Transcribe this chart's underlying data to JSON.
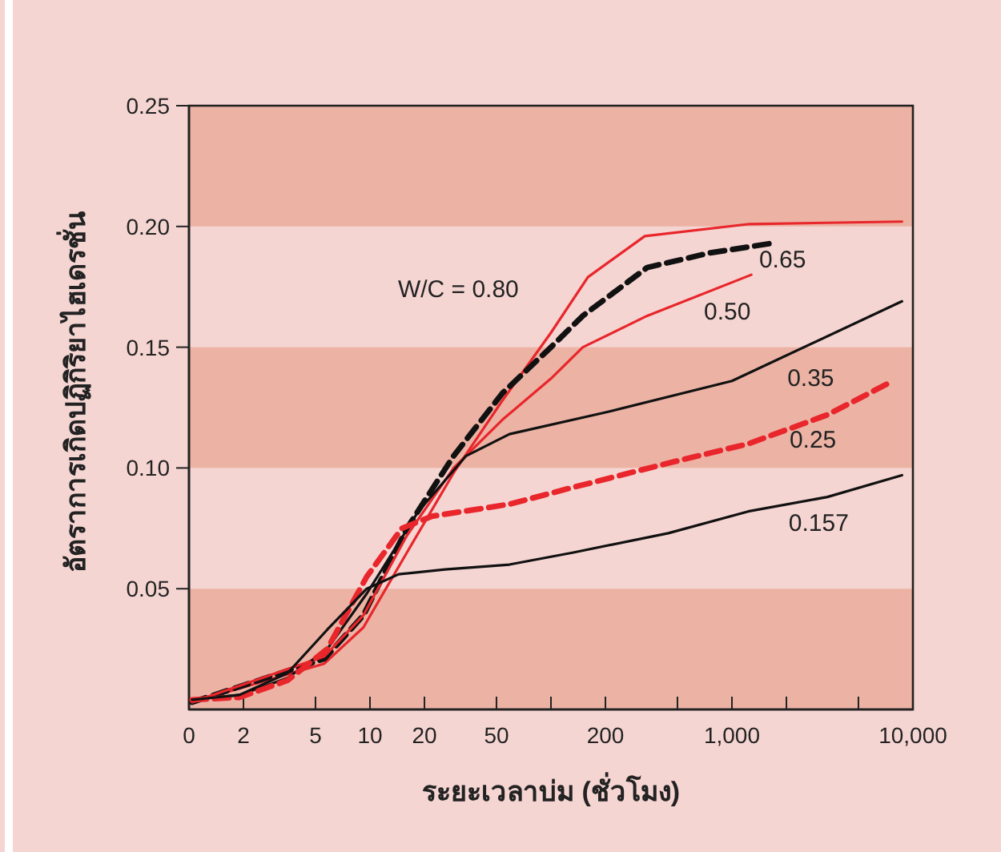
{
  "chart_data": {
    "type": "line",
    "xlabel": "ระยะเวลาบ่ม (ชั่วโมง)",
    "ylabel": "อัตราการเกิดปฏิกิริยาไฮเดรชั่น",
    "log": "x",
    "xlim": [
      0,
      10000
    ],
    "ylim": [
      0,
      0.25
    ],
    "xticks": [
      0,
      2,
      5,
      10,
      20,
      50,
      {
        "value": 100,
        "label": null
      },
      200,
      {
        "value": 500,
        "label": null
      },
      {
        "value": 1000,
        "label": "1,000"
      },
      {
        "value": 2000,
        "label": null
      },
      {
        "value": 5000,
        "label": null
      },
      {
        "value": 10000,
        "label": "10,000"
      }
    ],
    "yticks": [
      0.05,
      {
        "value": 0.1,
        "label": "0.10"
      },
      0.15,
      {
        "value": 0.2,
        "label": "0.20"
      },
      0.25
    ],
    "bands": [
      {
        "axis": "y",
        "from": 0,
        "to": 0.05,
        "color": "#ecb3a5"
      },
      {
        "axis": "y",
        "from": 0.1,
        "to": 0.15,
        "color": "#ecb3a5"
      },
      {
        "axis": "y",
        "from": 0.2,
        "to": 0.25,
        "color": "#ecb3a5"
      }
    ],
    "grid": false,
    "legend": false,
    "marker": "none",
    "series": [
      {
        "name": "W/C = 0.80",
        "color": "#e8262b",
        "line_style": "solid",
        "x": [
          1.04,
          5.6,
          9.2,
          16,
          29,
          54,
          100,
          160,
          330,
          1250,
          8700
        ],
        "values": [
          0.003,
          0.019,
          0.034,
          0.065,
          0.098,
          0.128,
          0.156,
          0.179,
          0.196,
          0.201,
          0.202
        ]
      },
      {
        "name": "0.65",
        "color": "#111111",
        "line_style": "dashed",
        "x": [
          1.04,
          5.6,
          9.2,
          16,
          29,
          54,
          100,
          150,
          340,
          750,
          1650
        ],
        "values": [
          0.003,
          0.021,
          0.039,
          0.075,
          0.105,
          0.131,
          0.15,
          0.163,
          0.183,
          0.189,
          0.193
        ]
      },
      {
        "name": "0.50",
        "color": "#e8262b",
        "line_style": "solid",
        "x": [
          1.04,
          5.6,
          9.2,
          16,
          29,
          54,
          100,
          150,
          340,
          1280
        ],
        "values": [
          0.003,
          0.022,
          0.039,
          0.072,
          0.1,
          0.12,
          0.137,
          0.15,
          0.163,
          0.18
        ]
      },
      {
        "name": "0.35",
        "color": "#111111",
        "line_style": "solid",
        "x": [
          1.04,
          1.9,
          3.5,
          5.8,
          9.6,
          18.5,
          34,
          59,
          200,
          1000,
          8700
        ],
        "values": [
          0.004,
          0.006,
          0.013,
          0.025,
          0.048,
          0.082,
          0.105,
          0.114,
          0.123,
          0.136,
          0.169
        ]
      },
      {
        "name": "0.25",
        "color": "#e8262b",
        "line_style": "dashed",
        "x": [
          1.04,
          1.9,
          3.5,
          5.8,
          9.6,
          15,
          22,
          59,
          133,
          445,
          1230,
          3370,
          7300
        ],
        "values": [
          0.004,
          0.005,
          0.012,
          0.025,
          0.055,
          0.075,
          0.08,
          0.085,
          0.092,
          0.102,
          0.11,
          0.122,
          0.135
        ]
      },
      {
        "name": "0.157",
        "color": "#111111",
        "line_style": "solid",
        "x": [
          1.04,
          1.9,
          3.5,
          5.8,
          9.6,
          14.4,
          26,
          59,
          133,
          445,
          1230,
          3370,
          8700
        ],
        "values": [
          0.004,
          0.006,
          0.015,
          0.033,
          0.05,
          0.056,
          0.058,
          0.06,
          0.065,
          0.073,
          0.082,
          0.088,
          0.097
        ]
      }
    ]
  }
}
